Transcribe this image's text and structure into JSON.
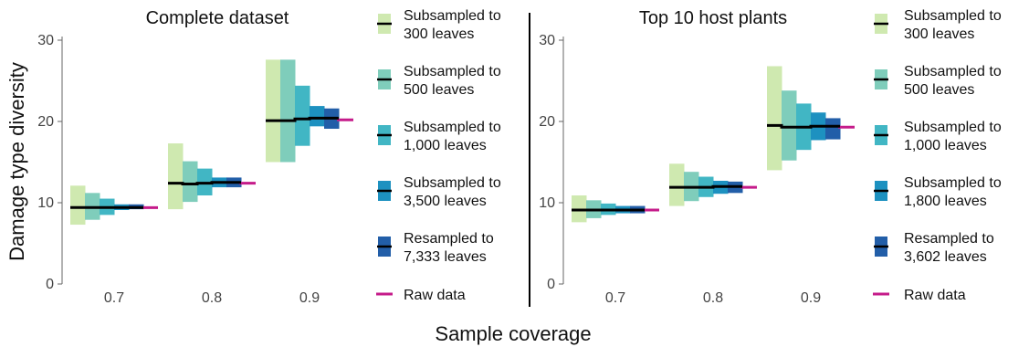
{
  "y_axis_title": "Damage type diversity",
  "x_axis_title": "Sample coverage",
  "colors": {
    "s300": "#cfe9b0",
    "s500": "#7fcdbb",
    "s1000": "#41b6c4",
    "s3500": "#1d91c0",
    "resampled": "#225ea8",
    "raw": "#c51b8a",
    "median": "#000000"
  },
  "chart_data": [
    {
      "type": "bar",
      "subtype": "range-bars",
      "title": "Complete dataset",
      "xlabel": "Sample coverage",
      "ylabel": "Damage type diversity",
      "categories": [
        "0.7",
        "0.8",
        "0.9"
      ],
      "yticks": [
        "0",
        "10",
        "20",
        "30"
      ],
      "ylim": [
        0,
        30
      ],
      "grid": false,
      "legend_position": "right",
      "series": [
        {
          "name": "Subsampled to 300 leaves",
          "color_key": "s300",
          "low": [
            7.3,
            9.2,
            15.0
          ],
          "high": [
            12.1,
            17.3,
            27.6
          ],
          "median": [
            9.4,
            12.4,
            20.1
          ]
        },
        {
          "name": "Subsampled to 500 leaves",
          "color_key": "s500",
          "low": [
            7.9,
            10.1,
            15.0
          ],
          "high": [
            11.2,
            15.1,
            27.6
          ],
          "median": [
            9.4,
            12.3,
            20.1
          ]
        },
        {
          "name": "Subsampled to 1,000 leaves",
          "color_key": "s1000",
          "low": [
            8.5,
            10.9,
            17.0
          ],
          "high": [
            10.5,
            14.2,
            24.4
          ],
          "median": [
            9.4,
            12.4,
            20.3
          ]
        },
        {
          "name": "Subsampled to 3,500 leaves",
          "color_key": "s3500",
          "low": [
            9.1,
            11.9,
            19.4
          ],
          "high": [
            9.8,
            13.1,
            21.9
          ],
          "median": [
            9.4,
            12.5,
            20.4
          ]
        },
        {
          "name": "Resampled to 7,333 leaves",
          "color_key": "resampled",
          "low": [
            9.2,
            11.9,
            19.1
          ],
          "high": [
            9.8,
            13.1,
            21.6
          ],
          "median": [
            9.4,
            12.5,
            20.4
          ]
        },
        {
          "name": "Raw data",
          "color_key": "raw",
          "type": "point",
          "values": [
            9.4,
            12.4,
            20.2
          ]
        }
      ]
    },
    {
      "type": "bar",
      "subtype": "range-bars",
      "title": "Top 10 host plants",
      "xlabel": "Sample coverage",
      "ylabel": "Damage type diversity",
      "categories": [
        "0.7",
        "0.8",
        "0.9"
      ],
      "yticks": [
        "0",
        "10",
        "20",
        "30"
      ],
      "ylim": [
        0,
        30
      ],
      "grid": false,
      "legend_position": "right",
      "series": [
        {
          "name": "Subsampled to 300 leaves",
          "color_key": "s300",
          "low": [
            7.6,
            9.6,
            14.0
          ],
          "high": [
            10.9,
            14.8,
            26.8
          ],
          "median": [
            9.1,
            11.9,
            19.5
          ]
        },
        {
          "name": "Subsampled to 500 leaves",
          "color_key": "s500",
          "low": [
            8.1,
            10.2,
            15.2
          ],
          "high": [
            10.3,
            13.8,
            23.8
          ],
          "median": [
            9.1,
            11.9,
            19.3
          ]
        },
        {
          "name": "Subsampled to 1,000 leaves",
          "color_key": "s1000",
          "low": [
            8.5,
            10.7,
            16.5
          ],
          "high": [
            9.9,
            13.2,
            22.2
          ],
          "median": [
            9.1,
            11.9,
            19.3
          ]
        },
        {
          "name": "Subsampled to 1,800 leaves",
          "color_key": "s3500",
          "low": [
            8.7,
            11.1,
            17.7
          ],
          "high": [
            9.6,
            12.7,
            21.1
          ],
          "median": [
            9.1,
            12.0,
            19.4
          ]
        },
        {
          "name": "Resampled to 3,602 leaves",
          "color_key": "resampled",
          "low": [
            8.7,
            11.2,
            17.8
          ],
          "high": [
            9.6,
            12.6,
            20.4
          ],
          "median": [
            9.1,
            12.0,
            19.4
          ]
        },
        {
          "name": "Raw data",
          "color_key": "raw",
          "type": "point",
          "values": [
            9.1,
            11.9,
            19.3
          ]
        }
      ]
    }
  ]
}
